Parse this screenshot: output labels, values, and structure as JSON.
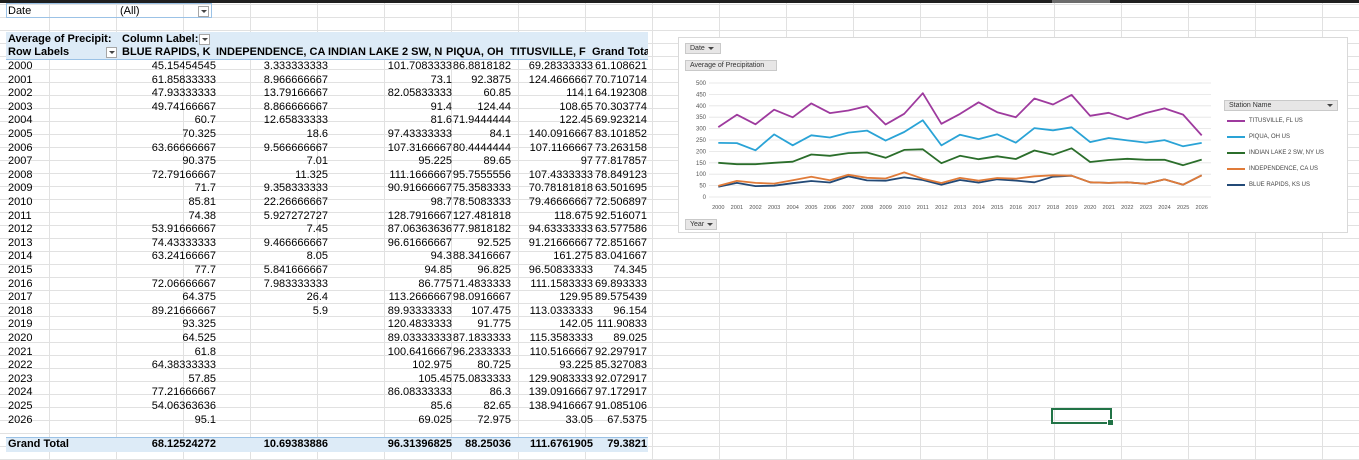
{
  "filter": {
    "field": "Date",
    "value": "(All)"
  },
  "pivot": {
    "measure_label": "Average of Precipit:",
    "column_labels": "Column Label:",
    "row_labels": "Row Labels",
    "columns": [
      "BLUE RAPIDS, K",
      "INDEPENDENCE, CA",
      "INDIAN LAKE 2 SW, N",
      "PIQUA, OH",
      "TITUSVILLE, F",
      "Grand Total"
    ],
    "rows": [
      [
        "2000",
        "45.15454545",
        "3.333333333",
        "101.7083333",
        "86.8818182",
        "69.28333333",
        "61.108621"
      ],
      [
        "2001",
        "61.85833333",
        "8.966666667",
        "73.1",
        "92.3875",
        "124.4666667",
        "70.710714"
      ],
      [
        "2002",
        "47.93333333",
        "13.79166667",
        "82.05833333",
        "60.85",
        "114.1",
        "64.192308"
      ],
      [
        "2003",
        "49.74166667",
        "8.866666667",
        "91.4",
        "124.44",
        "108.65",
        "70.303774"
      ],
      [
        "2004",
        "60.7",
        "12.65833333",
        "81.6",
        "71.9444444",
        "122.45",
        "69.923214"
      ],
      [
        "2005",
        "70.325",
        "18.6",
        "97.43333333",
        "84.1",
        "140.0916667",
        "83.101852"
      ],
      [
        "2006",
        "63.66666667",
        "9.566666667",
        "107.3166667",
        "80.4444444",
        "107.1166667",
        "73.263158"
      ],
      [
        "2007",
        "90.375",
        "7.01",
        "95.225",
        "89.65",
        "97",
        "77.817857"
      ],
      [
        "2008",
        "72.79166667",
        "11.325",
        "111.1666667",
        "95.7555556",
        "107.4333333",
        "78.849123"
      ],
      [
        "2009",
        "71.7",
        "9.358333333",
        "90.91666667",
        "75.3583333",
        "70.78181818",
        "63.501695"
      ],
      [
        "2010",
        "85.81",
        "22.26666667",
        "98.7",
        "78.5083333",
        "79.46666667",
        "72.506897"
      ],
      [
        "2011",
        "74.38",
        "5.927272727",
        "128.7916667",
        "127.481818",
        "118.675",
        "92.516071"
      ],
      [
        "2012",
        "53.91666667",
        "7.45",
        "87.06363636",
        "77.9818182",
        "94.63333333",
        "63.577586"
      ],
      [
        "2013",
        "74.43333333",
        "9.466666667",
        "96.61666667",
        "92.525",
        "91.21666667",
        "72.851667"
      ],
      [
        "2014",
        "63.24166667",
        "8.05",
        "94.3",
        "88.3416667",
        "161.275",
        "83.041667"
      ],
      [
        "2015",
        "77.7",
        "5.841666667",
        "94.85",
        "96.825",
        "96.50833333",
        "74.345"
      ],
      [
        "2016",
        "72.06666667",
        "7.983333333",
        "86.775",
        "71.4833333",
        "111.1583333",
        "69.893333"
      ],
      [
        "2017",
        "64.375",
        "26.4",
        "113.2666667",
        "98.0916667",
        "129.95",
        "89.575439"
      ],
      [
        "2018",
        "89.21666667",
        "5.9",
        "89.93333333",
        "107.475",
        "113.0333333",
        "96.154"
      ],
      [
        "2019",
        "93.325",
        "",
        "120.4833333",
        "91.775",
        "142.05",
        "111.90833"
      ],
      [
        "2020",
        "64.525",
        "",
        "89.03333333",
        "87.1833333",
        "115.3583333",
        "89.025"
      ],
      [
        "2021",
        "61.8",
        "",
        "100.6416667",
        "96.2333333",
        "110.5166667",
        "92.297917"
      ],
      [
        "2022",
        "64.38333333",
        "",
        "102.975",
        "80.725",
        "93.225",
        "85.327083"
      ],
      [
        "2023",
        "57.85",
        "",
        "105.45",
        "75.0833333",
        "129.9083333",
        "92.072917"
      ],
      [
        "2024",
        "77.21666667",
        "",
        "86.08333333",
        "86.3",
        "139.0916667",
        "97.172917"
      ],
      [
        "2025",
        "54.06363636",
        "",
        "85.6",
        "82.65",
        "138.9416667",
        "91.085106"
      ],
      [
        "2026",
        "95.1",
        "",
        "69.025",
        "72.975",
        "33.05",
        "67.5375"
      ]
    ],
    "grand_total": [
      "Grand Total",
      "68.12524272",
      "10.69383886",
      "96.31396825",
      "88.25036",
      "111.6761905",
      "79.3821"
    ]
  },
  "chart": {
    "filter_button": "Date",
    "value_button": "Average of Precipitation",
    "axis_button": "Year",
    "legend_button": "Station Name",
    "colors": {
      "TITUSVILLE, FL US": "#9e3a9e",
      "PIQUA, OH US": "#2aa3d6",
      "INDIAN LAKE 2 SW, NY US": "#2b6e2b",
      "INDEPENDENCE, CA US": "#e07b39",
      "BLUE RAPIDS, KS US": "#234a77"
    }
  },
  "chart_data": {
    "type": "line",
    "x": [
      "2000",
      "2001",
      "2002",
      "2003",
      "2004",
      "2005",
      "2006",
      "2007",
      "2008",
      "2009",
      "2010",
      "2011",
      "2012",
      "2013",
      "2014",
      "2015",
      "2016",
      "2017",
      "2018",
      "2019",
      "2020",
      "2021",
      "2022",
      "2023",
      "2024",
      "2025",
      "2026"
    ],
    "ylim": [
      0,
      500
    ],
    "yticks": [
      "0",
      "50",
      "100",
      "150",
      "200",
      "250",
      "300",
      "350",
      "400",
      "450",
      "500"
    ],
    "stacked": true,
    "legend_position": "right",
    "series": [
      {
        "name": "BLUE RAPIDS, KS US",
        "values": [
          45.15454545,
          61.85833333,
          47.93333333,
          49.74166667,
          60.7,
          70.325,
          63.66666667,
          90.375,
          72.79166667,
          71.7,
          85.81,
          74.38,
          53.91666667,
          74.43333333,
          63.24166667,
          77.7,
          72.06666667,
          64.375,
          89.21666667,
          93.325,
          64.525,
          61.8,
          64.38333333,
          57.85,
          77.21666667,
          54.06363636,
          95.1
        ]
      },
      {
        "name": "INDEPENDENCE, CA US",
        "values": [
          3.333333333,
          8.966666667,
          13.79166667,
          8.866666667,
          12.65833333,
          18.6,
          9.566666667,
          7.01,
          11.325,
          9.358333333,
          22.26666667,
          5.927272727,
          7.45,
          9.466666667,
          8.05,
          5.841666667,
          7.983333333,
          26.4,
          5.9,
          0,
          0,
          0,
          0,
          0,
          0,
          0,
          0
        ]
      },
      {
        "name": "INDIAN LAKE 2 SW, NY US",
        "values": [
          101.7083333,
          73.1,
          82.05833333,
          91.4,
          81.6,
          97.43333333,
          107.3166667,
          95.225,
          111.1666667,
          90.91666667,
          98.7,
          128.7916667,
          87.06363636,
          96.61666667,
          94.3,
          94.85,
          86.775,
          113.2666667,
          89.93333333,
          120.4833333,
          89.03333333,
          100.6416667,
          102.975,
          105.45,
          86.08333333,
          85.6,
          69.025
        ]
      },
      {
        "name": "PIQUA, OH US",
        "values": [
          86.8818182,
          92.3875,
          60.85,
          124.44,
          71.9444444,
          84.1,
          80.4444444,
          89.65,
          95.7555556,
          75.3583333,
          78.5083333,
          127.481818,
          77.9818182,
          92.525,
          88.3416667,
          96.825,
          71.4833333,
          98.0916667,
          107.475,
          91.775,
          87.1833333,
          96.2333333,
          80.725,
          75.0833333,
          86.3,
          82.65,
          72.975
        ]
      },
      {
        "name": "TITUSVILLE, FL US",
        "values": [
          69.28333333,
          124.4666667,
          114.1,
          108.65,
          122.45,
          140.0916667,
          107.1166667,
          97,
          107.4333333,
          70.78181818,
          79.46666667,
          118.675,
          94.63333333,
          91.21666667,
          161.275,
          96.50833333,
          111.1583333,
          129.95,
          113.0333333,
          142.05,
          115.3583333,
          110.5166667,
          93.225,
          129.9083333,
          139.0916667,
          138.9416667,
          33.05
        ]
      }
    ],
    "legend_order": [
      "TITUSVILLE, FL US",
      "PIQUA, OH US",
      "INDIAN LAKE 2 SW, NY US",
      "INDEPENDENCE, CA US",
      "BLUE RAPIDS, KS US"
    ]
  }
}
